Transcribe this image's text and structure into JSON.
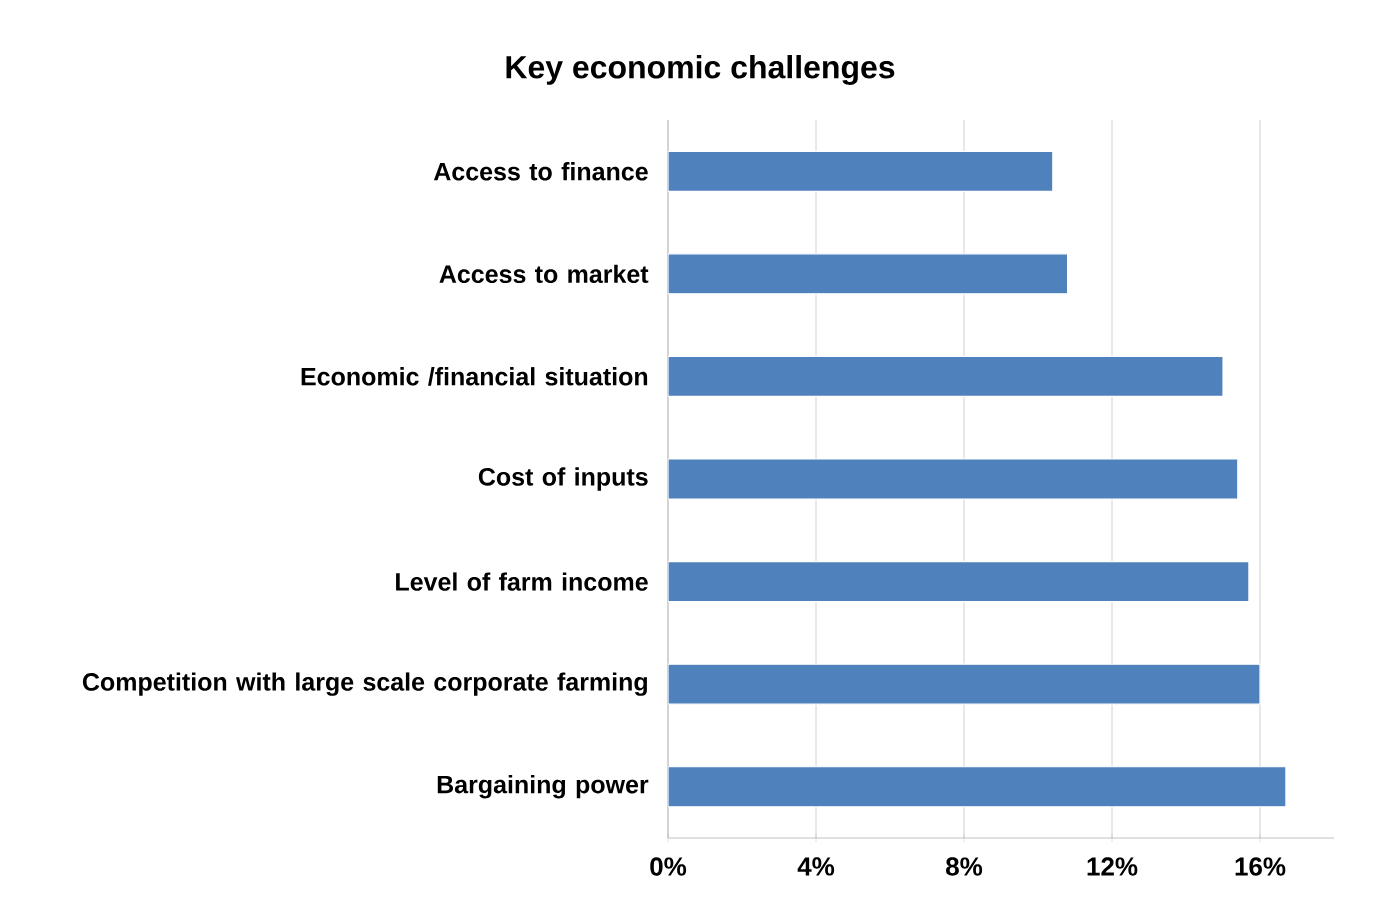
{
  "chart_data": {
    "type": "bar",
    "orientation": "horizontal",
    "title": "Key economic challenges",
    "categories": [
      "Access to finance",
      "Access to market",
      "Economic /financial situation",
      "Cost of inputs",
      "Level of farm income",
      "Competition with large scale corporate farming",
      "Bargaining power"
    ],
    "values": [
      10.4,
      10.8,
      15.0,
      15.4,
      15.7,
      16.0,
      16.7
    ],
    "color": "#4f81bd",
    "xlim": [
      0,
      18
    ],
    "xticks": [
      {
        "value": 0,
        "label": "0%"
      },
      {
        "value": 4,
        "label": "4%"
      },
      {
        "value": 8,
        "label": "8%"
      },
      {
        "value": 12,
        "label": "12%"
      },
      {
        "value": 16,
        "label": "16%"
      }
    ],
    "grid": "x"
  }
}
